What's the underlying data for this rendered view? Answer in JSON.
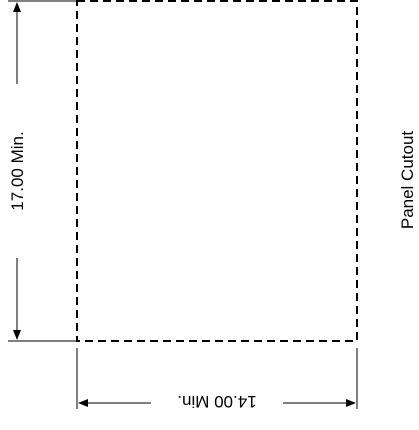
{
  "diagram": {
    "title": "Panel Cutout",
    "height_label": "17.00 Min.",
    "width_label": "14.00 Min.",
    "line_color": "#000000",
    "background_color": "#ffffff"
  }
}
